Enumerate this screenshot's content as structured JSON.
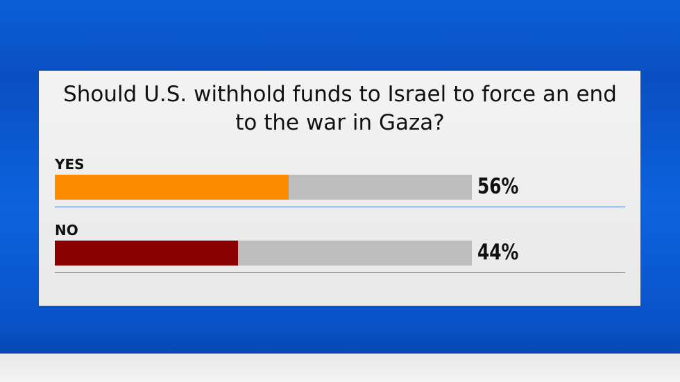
{
  "chart_data": {
    "type": "bar",
    "title": "Should U.S. withhold funds to Israel to force an end to the war in Gaza?",
    "categories": [
      "YES",
      "NO"
    ],
    "values": [
      56,
      44
    ],
    "value_labels": [
      "56%",
      "44%"
    ],
    "colors": [
      "#ff8c00",
      "#8b0000"
    ],
    "xlim": [
      0,
      100
    ]
  }
}
